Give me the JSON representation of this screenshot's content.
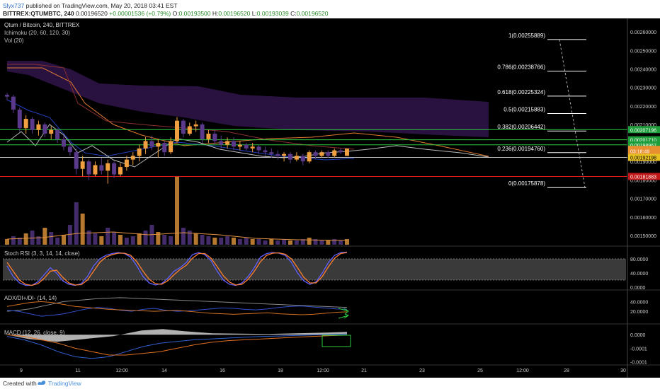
{
  "header": {
    "user": "Slyx737",
    "published": "published on TradingView.com, May 20, 2018 03:41 EST",
    "symbol": "BITTREX:QTUMBTC, 240",
    "ohlc_last": "0.00196520",
    "change": "+0.00001536 (+0.79%)",
    "o_label": "O:",
    "o_val": "0.00193500",
    "h_label": "H:",
    "h_val": "0.00196520",
    "l_label": "L:",
    "l_val": "0.00193039",
    "c_label": "C:",
    "c_val": "0.00196520"
  },
  "main_legend": {
    "title": "Qtum / Bitcoin, 240, BITTREX",
    "ichimoku": "Ichimoku (20, 60, 120, 30)",
    "vol": "Vol (20)"
  },
  "panes": {
    "stoch": "Stoch RSI (3, 3, 14, 14, close)",
    "adx": "ADX/DI+/DI- (14, 14)",
    "macd": "MACD (12, 26, close, 9)"
  },
  "footer": {
    "created": "Created with",
    "brand": "TradingView"
  },
  "colors": {
    "bg": "#000000",
    "up_candle": "#f0a040",
    "down_candle": "#5b3a8c",
    "fib_line": "#ffffff",
    "green_line": "#2ecc40",
    "red_line": "#e02020",
    "cloud": "#3a1a5a",
    "kijun": "#8a3030",
    "tenkan": "#2040c0"
  },
  "chart_data": [
    {
      "type": "candlestick",
      "pane": "price",
      "x_ticks": [
        "9",
        "11",
        "12:00",
        "14",
        "16",
        "18",
        "12:00",
        "21",
        "23",
        "25",
        "12:00",
        "28",
        "30"
      ],
      "y_ticks": [
        "0.00260000",
        "0.00250000",
        "0.00240000",
        "0.00230000",
        "0.00220000",
        "0.00210000",
        "0.00200000",
        "0.00190000",
        "0.00180000",
        "0.00170000",
        "0.00160000",
        "0.00150000"
      ],
      "ylim": [
        0.00145,
        0.00265
      ],
      "candles": [
        {
          "o": 0.00226,
          "h": 0.00227,
          "l": 0.00223,
          "c": 0.00225
        },
        {
          "o": 0.00225,
          "h": 0.00226,
          "l": 0.00216,
          "c": 0.00218
        },
        {
          "o": 0.00218,
          "h": 0.00219,
          "l": 0.00206,
          "c": 0.00208
        },
        {
          "o": 0.00208,
          "h": 0.00215,
          "l": 0.00205,
          "c": 0.00213
        },
        {
          "o": 0.00213,
          "h": 0.00214,
          "l": 0.00205,
          "c": 0.00207
        },
        {
          "o": 0.00207,
          "h": 0.00212,
          "l": 0.00204,
          "c": 0.0021
        },
        {
          "o": 0.0021,
          "h": 0.00211,
          "l": 0.00203,
          "c": 0.00205
        },
        {
          "o": 0.00205,
          "h": 0.00209,
          "l": 0.00202,
          "c": 0.00207
        },
        {
          "o": 0.00207,
          "h": 0.00208,
          "l": 0.002,
          "c": 0.00202
        },
        {
          "o": 0.00202,
          "h": 0.00204,
          "l": 0.00196,
          "c": 0.00198
        },
        {
          "o": 0.00198,
          "h": 0.002,
          "l": 0.00193,
          "c": 0.00195
        },
        {
          "o": 0.00195,
          "h": 0.00197,
          "l": 0.00183,
          "c": 0.00186
        },
        {
          "o": 0.00186,
          "h": 0.00193,
          "l": 0.00182,
          "c": 0.0019
        },
        {
          "o": 0.0019,
          "h": 0.00191,
          "l": 0.0018,
          "c": 0.00183
        },
        {
          "o": 0.00183,
          "h": 0.0019,
          "l": 0.00182,
          "c": 0.00188
        },
        {
          "o": 0.00188,
          "h": 0.00192,
          "l": 0.00183,
          "c": 0.00185
        },
        {
          "o": 0.00185,
          "h": 0.00191,
          "l": 0.00178,
          "c": 0.00189
        },
        {
          "o": 0.00189,
          "h": 0.0019,
          "l": 0.00181,
          "c": 0.00183
        },
        {
          "o": 0.00183,
          "h": 0.00189,
          "l": 0.00182,
          "c": 0.00187
        },
        {
          "o": 0.00187,
          "h": 0.00193,
          "l": 0.00185,
          "c": 0.00191
        },
        {
          "o": 0.00191,
          "h": 0.00195,
          "l": 0.00188,
          "c": 0.00193
        },
        {
          "o": 0.00193,
          "h": 0.00199,
          "l": 0.0019,
          "c": 0.00197
        },
        {
          "o": 0.00197,
          "h": 0.00203,
          "l": 0.00194,
          "c": 0.00201
        },
        {
          "o": 0.00201,
          "h": 0.00204,
          "l": 0.00196,
          "c": 0.00198
        },
        {
          "o": 0.00198,
          "h": 0.00202,
          "l": 0.00192,
          "c": 0.002
        },
        {
          "o": 0.002,
          "h": 0.00201,
          "l": 0.00193,
          "c": 0.00195
        },
        {
          "o": 0.00195,
          "h": 0.00203,
          "l": 0.00194,
          "c": 0.00201
        },
        {
          "o": 0.00201,
          "h": 0.00214,
          "l": 0.002,
          "c": 0.00212
        },
        {
          "o": 0.00212,
          "h": 0.00213,
          "l": 0.00203,
          "c": 0.00205
        },
        {
          "o": 0.00205,
          "h": 0.00211,
          "l": 0.00204,
          "c": 0.00209
        },
        {
          "o": 0.00209,
          "h": 0.00212,
          "l": 0.00206,
          "c": 0.0021
        },
        {
          "o": 0.0021,
          "h": 0.00211,
          "l": 0.002,
          "c": 0.00202
        },
        {
          "o": 0.00202,
          "h": 0.00207,
          "l": 0.002,
          "c": 0.00205
        },
        {
          "o": 0.00205,
          "h": 0.00207,
          "l": 0.00199,
          "c": 0.00201
        },
        {
          "o": 0.00201,
          "h": 0.00204,
          "l": 0.00197,
          "c": 0.00199
        },
        {
          "o": 0.00199,
          "h": 0.00203,
          "l": 0.00197,
          "c": 0.00201
        },
        {
          "o": 0.00201,
          "h": 0.00203,
          "l": 0.00196,
          "c": 0.00198
        },
        {
          "o": 0.00198,
          "h": 0.00201,
          "l": 0.00196,
          "c": 0.00199
        },
        {
          "o": 0.00199,
          "h": 0.002,
          "l": 0.00196,
          "c": 0.00197
        },
        {
          "o": 0.00197,
          "h": 0.002,
          "l": 0.00195,
          "c": 0.00198
        },
        {
          "o": 0.00198,
          "h": 0.00199,
          "l": 0.00194,
          "c": 0.00196
        },
        {
          "o": 0.00196,
          "h": 0.00198,
          "l": 0.00193,
          "c": 0.00195
        },
        {
          "o": 0.00195,
          "h": 0.00197,
          "l": 0.00192,
          "c": 0.00194
        },
        {
          "o": 0.00194,
          "h": 0.00196,
          "l": 0.00191,
          "c": 0.00193
        },
        {
          "o": 0.00193,
          "h": 0.00195,
          "l": 0.0019,
          "c": 0.00194
        },
        {
          "o": 0.00194,
          "h": 0.00195,
          "l": 0.00189,
          "c": 0.00191
        },
        {
          "o": 0.00191,
          "h": 0.00195,
          "l": 0.0019,
          "c": 0.00193
        },
        {
          "o": 0.00193,
          "h": 0.00194,
          "l": 0.00188,
          "c": 0.0019
        },
        {
          "o": 0.0019,
          "h": 0.00196,
          "l": 0.00189,
          "c": 0.00195
        },
        {
          "o": 0.00195,
          "h": 0.00196,
          "l": 0.00191,
          "c": 0.00193
        },
        {
          "o": 0.00193,
          "h": 0.00196,
          "l": 0.00192,
          "c": 0.00195
        },
        {
          "o": 0.00195,
          "h": 0.00196,
          "l": 0.00192,
          "c": 0.00193
        },
        {
          "o": 0.00193,
          "h": 0.00197,
          "l": 0.00192,
          "c": 0.00196
        },
        {
          "o": 0.00196,
          "h": 0.00197,
          "l": 0.00194,
          "c": 0.00195
        },
        {
          "o": 0.00193,
          "h": 0.00197,
          "l": 0.00193,
          "c": 0.00197
        }
      ],
      "price_labels": [
        {
          "text": "0.00207196",
          "kind": "green"
        },
        {
          "text": "0.00201710",
          "kind": "green"
        },
        {
          "text": "0.00198967",
          "kind": "green"
        },
        {
          "text": "0.00196520",
          "kind": "orange"
        },
        {
          "text": "03:18:49",
          "kind": "orange"
        },
        {
          "text": "0.00192198",
          "kind": "yellow"
        },
        {
          "text": "0.00181883",
          "kind": "red"
        }
      ],
      "horizontal_lines": [
        {
          "value": 0.00207196,
          "kind": "green"
        },
        {
          "value": 0.0020171,
          "kind": "green"
        },
        {
          "value": 0.00198967,
          "kind": "green"
        },
        {
          "value": 0.00192198,
          "kind": "white"
        },
        {
          "value": 0.00181883,
          "kind": "red"
        }
      ],
      "fib_levels": [
        {
          "label": "1(0.00255889)",
          "value": 0.00255889
        },
        {
          "label": "0.786(0.00238766)",
          "value": 0.00238766
        },
        {
          "label": "0.618(0.00225324)",
          "value": 0.00225324
        },
        {
          "label": "0.5(0.00215883)",
          "value": 0.00215883
        },
        {
          "label": "0.382(0.00206442)",
          "value": 0.00206442
        },
        {
          "label": "0.236(0.00194760)",
          "value": 0.0019476
        },
        {
          "label": "0(0.00175878)",
          "value": 0.00175878
        }
      ]
    },
    {
      "type": "line",
      "pane": "stoch",
      "y_ticks": [
        "80.0000",
        "40.0000",
        "0.0000"
      ],
      "ylim": [
        0,
        100
      ],
      "series": [
        {
          "values": [
            60,
            30,
            12,
            5,
            5,
            15,
            35,
            55,
            40,
            18,
            8,
            5,
            10,
            30,
            60,
            80,
            90,
            95,
            98,
            95,
            85,
            60,
            30,
            12,
            6,
            10,
            25,
            45,
            55,
            70,
            92,
            98,
            92,
            75,
            45,
            20,
            8,
            5,
            12,
            30,
            55,
            85,
            95,
            98,
            96,
            90,
            70,
            40,
            18,
            8,
            15,
            40,
            70,
            90,
            98,
            99
          ]
        },
        {
          "values": [
            70,
            45,
            20,
            8,
            5,
            10,
            25,
            45,
            48,
            28,
            12,
            6,
            7,
            20,
            45,
            70,
            85,
            92,
            96,
            96,
            90,
            72,
            45,
            22,
            10,
            8,
            18,
            35,
            50,
            62,
            82,
            95,
            95,
            82,
            58,
            32,
            14,
            6,
            8,
            22,
            45,
            72,
            90,
            96,
            97,
            93,
            80,
            55,
            28,
            12,
            12,
            30,
            58,
            82,
            95,
            98
          ]
        }
      ]
    },
    {
      "type": "line",
      "pane": "adx",
      "y_ticks": [
        "40.0000",
        "20.0000"
      ],
      "ylim": [
        0,
        55
      ],
      "series": [
        {
          "values": [
            20,
            22,
            25,
            30,
            35,
            40,
            42,
            44,
            46,
            47,
            48,
            47,
            46,
            45,
            44,
            43,
            42,
            41,
            40,
            39,
            38,
            37,
            36,
            35,
            34,
            33,
            32,
            31,
            30,
            29,
            28
          ]
        },
        {
          "values": [
            22,
            20,
            15,
            10,
            12,
            15,
            20,
            25,
            28,
            26,
            22,
            20,
            24,
            26,
            22,
            20,
            21,
            23,
            25,
            27,
            26,
            24,
            23,
            25,
            28,
            30,
            31,
            29,
            27,
            25,
            24
          ]
        },
        {
          "values": [
            30,
            34,
            38,
            40,
            38,
            34,
            30,
            28,
            26,
            24,
            23,
            22,
            21,
            20,
            21,
            22,
            20,
            18,
            16,
            15,
            14,
            15,
            16,
            17,
            15,
            14,
            13,
            14,
            16,
            18,
            19
          ]
        }
      ]
    },
    {
      "type": "line",
      "pane": "macd",
      "y_ticks": [
        "0.0000",
        "-0.0001",
        "-0.0001"
      ],
      "ylim": [
        -0.00017,
        3e-05
      ],
      "series": [
        {
          "values": [
            -1e-05,
            -3e-05,
            -6e-05,
            -0.0001,
            -0.00013,
            -0.00014,
            -0.00013,
            -0.0001,
            -7e-05,
            -5e-05,
            -4e-05,
            -3e-05,
            -2.5e-05,
            -2e-05,
            -1.5e-05,
            -1e-05,
            -8e-06,
            -5e-06,
            -2e-06,
            1e-06,
            4e-06
          ]
        },
        {
          "values": [
            0,
            -1e-05,
            -3e-05,
            -5e-05,
            -8e-05,
            -0.0001,
            -0.00012,
            -0.00012,
            -0.00011,
            -0.0001,
            -8e-05,
            -6e-05,
            -4.5e-05,
            -3.5e-05,
            -3e-05,
            -2.5e-05,
            -2e-05,
            -1.5e-05,
            -1e-05,
            -6e-06,
            -3e-06
          ]
        }
      ]
    }
  ]
}
